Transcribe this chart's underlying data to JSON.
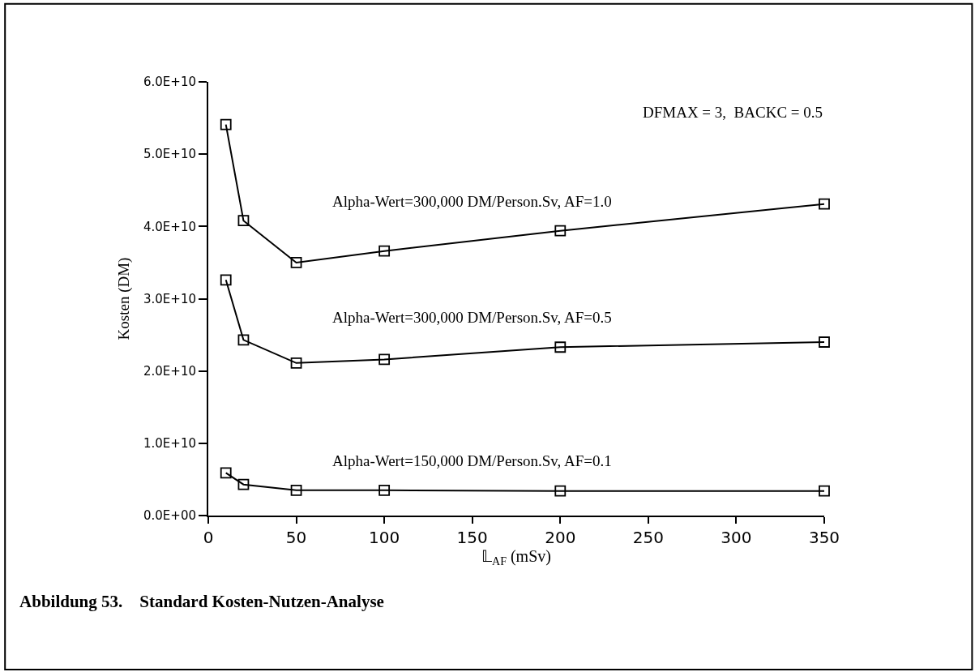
{
  "chart_data": {
    "type": "line",
    "title": "Abbildung 53.    Standard Kosten-Nutzen-Analyse",
    "xlabel": "𝕃$_{AF}$ (mSv)",
    "ylabel": "Kosten (DM)",
    "annotations": [
      "DFMAX = 3,  BACKC = 0.5"
    ],
    "x": [
      10,
      20,
      50,
      100,
      200,
      350
    ],
    "series": [
      {
        "name": "Alpha-Wert=300,000 DM/Person.Sv, AF=1.0",
        "color": "#000000",
        "values": [
          54100000000.0,
          40800000000.0,
          35000000000.0,
          36600000000.0,
          39400000000.0,
          43100000000.0
        ]
      },
      {
        "name": "Alpha-Wert=300,000 DM/Person.Sv, AF=0.5",
        "color": "#000000",
        "values": [
          32600000000.0,
          24300000000.0,
          21100000000.0,
          21600000000.0,
          23300000000.0,
          24000000000.0
        ]
      },
      {
        "name": "Alpha-Wert=150,000 DM/Person.Sv, AF=0.1",
        "color": "#000000",
        "values": [
          5900000000.0,
          4300000000.0,
          3500000000.0,
          3500000000.0,
          3400000000.0,
          3400000000.0
        ]
      }
    ],
    "xlim": [
      0,
      350
    ],
    "xticks": [
      0,
      50,
      100,
      150,
      200,
      250,
      300,
      350
    ],
    "ylim": [
      0,
      60000000000.0
    ],
    "yticks": [
      {
        "value": 0,
        "label": "0.0E+00"
      },
      {
        "value": 10000000000.0,
        "label": "1.0E+10"
      },
      {
        "value": 20000000000.0,
        "label": "2.0E+10"
      },
      {
        "value": 30000000000.0,
        "label": "3.0E+10"
      },
      {
        "value": 40000000000.0,
        "label": "4.0E+10"
      },
      {
        "value": 50000000000.0,
        "label": "5.0E+10"
      },
      {
        "value": 60000000000.0,
        "label": "6.0E+10"
      }
    ],
    "legend": false,
    "marker": "square",
    "line_style": "solid"
  }
}
